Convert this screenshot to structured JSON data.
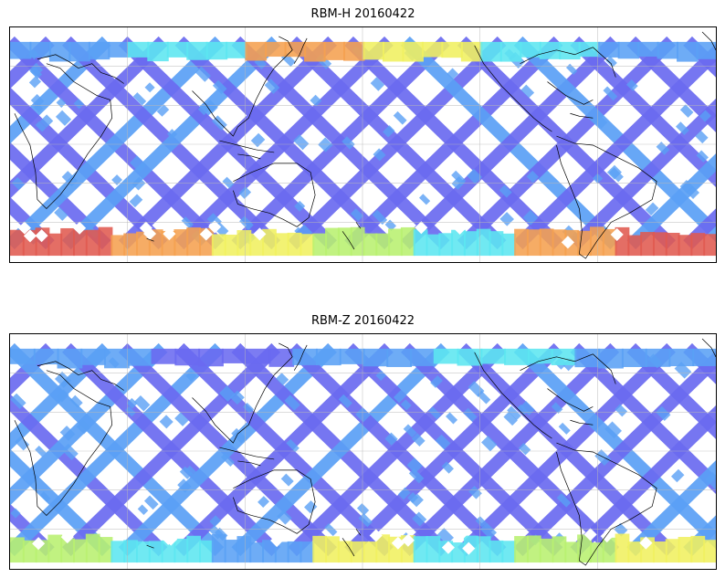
{
  "maps": [
    {
      "title": "RBM-H 20160422",
      "colormap": [
        "#6a6af0",
        "#5aa0f5",
        "#5ce6f0",
        "#f0f060",
        "#f5a050",
        "#e05a50"
      ],
      "south_band_colors": [
        "#e05a50",
        "#f5a050",
        "#f0f060",
        "#b8f070",
        "#5ce6f0",
        "#f5a050",
        "#e05a50"
      ],
      "north_band_colors": [
        "#5aa0f5",
        "#5ce6f0",
        "#f5a050",
        "#f0f060",
        "#5ce6f0",
        "#5aa0f5"
      ]
    },
    {
      "title": "RBM-Z 20160422",
      "colormap": [
        "#6a6af0",
        "#5aa0f5",
        "#5ce6f0",
        "#f0f060",
        "#f5a050"
      ],
      "south_band_colors": [
        "#b8f070",
        "#5ce6f0",
        "#5aa0f5",
        "#f0f060",
        "#5ce6f0",
        "#b8f070",
        "#f0f060"
      ],
      "north_band_colors": [
        "#5aa0f5",
        "#6a6af0",
        "#5aa0f5",
        "#5ce6f0",
        "#5aa0f5"
      ]
    }
  ]
}
